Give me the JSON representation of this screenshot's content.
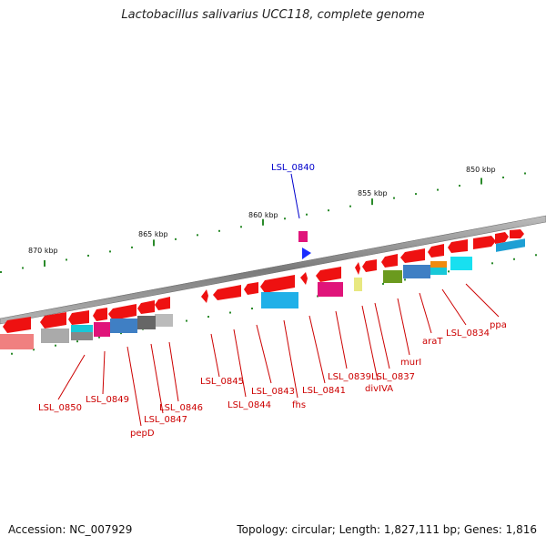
{
  "title": "Lactobacillus salivarius UCC118, complete genome",
  "footer": {
    "accession": "Accession: NC_007929",
    "info": "Topology: circular; Length: 1,827,111 bp; Genes: 1,816"
  },
  "scale_labels": [
    "850 kbp",
    "855 kbp",
    "860 kbp",
    "865 kbp",
    "870 kbp"
  ],
  "highlight_gene": {
    "name": "LSL_0840",
    "color": "#0000cc"
  },
  "gene_labels": [
    "ppa",
    "LSL_0834",
    "araT",
    "murI",
    "LSL_0837",
    "divIVA",
    "LSL_0839",
    "LSL_0841",
    "fhs",
    "LSL_0843",
    "LSL_0844",
    "LSL_0845",
    "LSL_0846",
    "LSL_0847",
    "pepD",
    "LSL_0849",
    "LSL_0850"
  ],
  "colors": {
    "gene_arrow": "#ee1111",
    "label": "#cc0000",
    "backbone": "#8a8a8a",
    "tick": "#2a8a2a"
  }
}
